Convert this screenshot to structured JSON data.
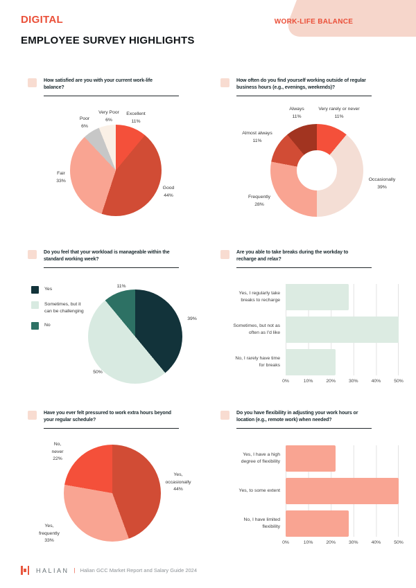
{
  "header": {
    "kicker": "DIGITAL",
    "title": "EMPLOYEE SURVEY HIGHLIGHTS",
    "badge": "WORK-LIFE BALANCE"
  },
  "footer": {
    "brand": "HALIAN",
    "separator": "|",
    "caption": "Halian GCC Market Report and Salary Guide 2024"
  },
  "chart_data": [
    {
      "id": "satisfaction",
      "type": "pie",
      "question": "How satisfied are you with your current work-life\nbalance?",
      "slices": [
        {
          "label": "Excellent",
          "value": 11,
          "color": "#f4503a"
        },
        {
          "label": "Good",
          "value": 44,
          "color": "#d14c35"
        },
        {
          "label": "Fair",
          "value": 33,
          "color": "#f9a492"
        },
        {
          "label": "Poor",
          "value": 6,
          "color": "#c7c7c7"
        },
        {
          "label": "Very Poor",
          "value": 6,
          "color": "#faf0e6"
        }
      ]
    },
    {
      "id": "outside-hours",
      "type": "donut",
      "question": "How often do you find yourself working outside of regular\nbusiness hours (e.g., evenings, weekends)?",
      "slices": [
        {
          "label": "Very rarely or never",
          "value": 11,
          "color": "#f4503a"
        },
        {
          "label": "Occasionally",
          "value": 39,
          "color": "#f4ded5"
        },
        {
          "label": "Frequently",
          "value": 28,
          "color": "#f9a492"
        },
        {
          "label": "Almost always",
          "value": 11,
          "color": "#d14c35"
        },
        {
          "label": "Always",
          "value": 11,
          "color": "#a23420"
        }
      ]
    },
    {
      "id": "workload",
      "type": "pie",
      "question": "Do you feel that your workload is manageable within the\nstandard working week?",
      "slices": [
        {
          "label": "Yes",
          "value": 39,
          "color": "#12333a"
        },
        {
          "label": "Sometimes, but it\ncan be challenging",
          "value": 50,
          "color": "#d8eae1"
        },
        {
          "label": "No",
          "value": 11,
          "color": "#2d7164"
        }
      ]
    },
    {
      "id": "breaks",
      "type": "bar",
      "question": "Are you able to take breaks during the workday to\nrecharge and relax?",
      "bar_color": "#dcebe2",
      "categories": [
        "Yes, I regularly take\nbreaks to recharge",
        "Sometimes, but not as\noften as I'd like",
        "No, I rarely have time\nfor breaks"
      ],
      "values": [
        28,
        50,
        22
      ],
      "xlim": [
        0,
        50
      ],
      "ticks": [
        0,
        10,
        20,
        30,
        40,
        50
      ],
      "grid": true,
      "legend": "none"
    },
    {
      "id": "pressure",
      "type": "pie",
      "question": "Have you ever felt pressured to work extra hours beyond\nyour regular schedule?",
      "slices": [
        {
          "label": "Yes, occasionally",
          "value": 44,
          "color": "#d14c35"
        },
        {
          "label": "Yes, frequently",
          "value": 33,
          "color": "#f9a492"
        },
        {
          "label": "No, never",
          "value": 22,
          "color": "#f4503a"
        }
      ]
    },
    {
      "id": "flexibility",
      "type": "bar",
      "question": "Do you have flexibility in adjusting your work hours or\nlocation (e.g., remote work) when needed?",
      "bar_color": "#f9a492",
      "categories": [
        "Yes, I have a high\ndegree of flexibility",
        "Yes, to some extent",
        "No, I have limited\nflexibility"
      ],
      "values": [
        22,
        50,
        28
      ],
      "xlim": [
        0,
        50
      ],
      "ticks": [
        0,
        10,
        20,
        30,
        40,
        50
      ],
      "grid": true,
      "legend": "none"
    }
  ]
}
